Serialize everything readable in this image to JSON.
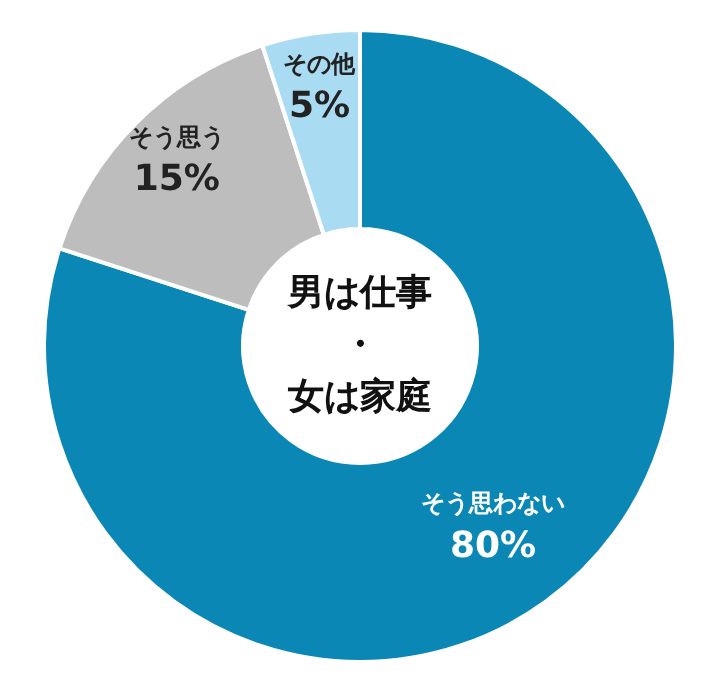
{
  "chart_data": {
    "type": "donut",
    "annotations": [
      "男は仕事",
      "・",
      "女は家庭"
    ],
    "categories": [
      "そう思わない",
      "そう思う",
      "その他"
    ],
    "values": [
      80,
      15,
      5
    ],
    "colors": [
      "#0b87b5",
      "#bdbdbd",
      "#a9dcf3"
    ],
    "value_labels": [
      "80%",
      "15%",
      "5%"
    ],
    "legend": false
  }
}
